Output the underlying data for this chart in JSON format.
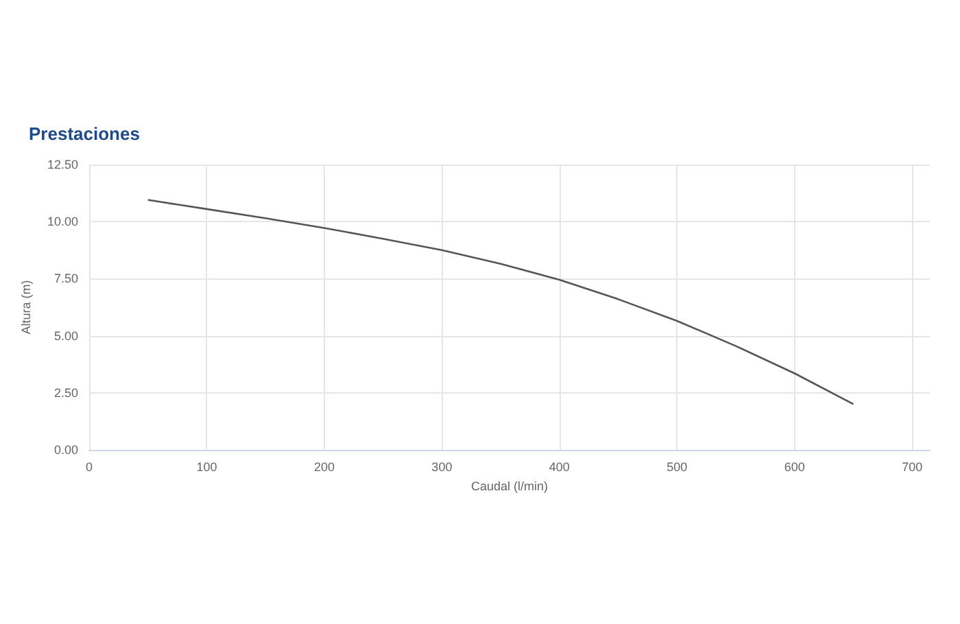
{
  "chart_data": {
    "type": "line",
    "title": "Prestaciones",
    "xlabel": "Caudal (l/min)",
    "ylabel": "Altura (m)",
    "x": [
      50,
      100,
      150,
      200,
      250,
      300,
      350,
      400,
      450,
      500,
      550,
      600,
      650
    ],
    "series": [
      {
        "color": "#555555",
        "values": [
          10.95,
          10.55,
          10.15,
          9.72,
          9.25,
          8.75,
          8.15,
          7.45,
          6.6,
          5.65,
          4.55,
          3.35,
          2.0
        ]
      }
    ],
    "xlim": [
      0,
      715
    ],
    "xticks": [
      0,
      100,
      200,
      300,
      400,
      500,
      600,
      700
    ],
    "ylim": [
      0,
      12.5
    ],
    "yticks": [
      {
        "value": 0,
        "label": "0.00"
      },
      {
        "value": 2.5,
        "label": "2.50"
      },
      {
        "value": 5,
        "label": "5.00"
      },
      {
        "value": 7.5,
        "label": "7.50"
      },
      {
        "value": 10,
        "label": "10.00"
      },
      {
        "value": 12.5,
        "label": "12.50"
      }
    ],
    "grid": true,
    "marker": "none",
    "line_style": "solid"
  }
}
